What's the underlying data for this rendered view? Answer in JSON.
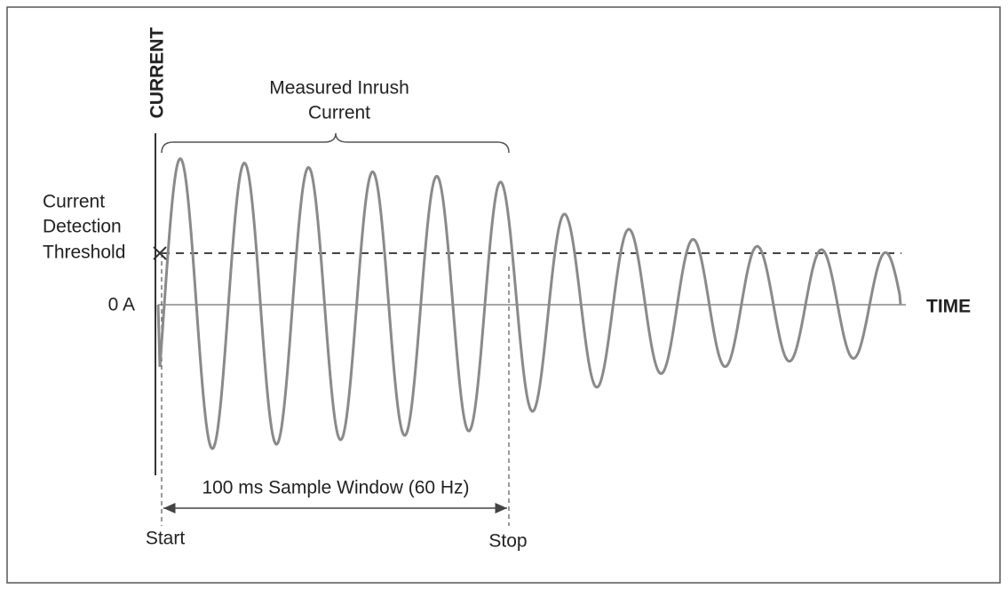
{
  "labels": {
    "y_axis": "CURRENT",
    "x_axis": "TIME",
    "zero": "0 A",
    "threshold": [
      "Current",
      "Detection",
      "Threshold"
    ],
    "measured": [
      "Measured Inrush",
      "Current"
    ],
    "window": "100 ms Sample Window (60 Hz)",
    "start": "Start",
    "stop": "Stop"
  }
}
